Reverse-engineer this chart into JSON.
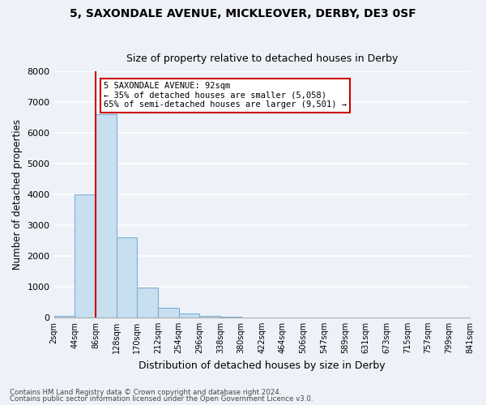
{
  "title1": "5, SAXONDALE AVENUE, MICKLEOVER, DERBY, DE3 0SF",
  "title2": "Size of property relative to detached houses in Derby",
  "xlabel": "Distribution of detached houses by size in Derby",
  "ylabel": "Number of detached properties",
  "bin_labels": [
    "2sqm",
    "44sqm",
    "86sqm",
    "128sqm",
    "170sqm",
    "212sqm",
    "254sqm",
    "296sqm",
    "338sqm",
    "380sqm",
    "422sqm",
    "464sqm",
    "506sqm",
    "547sqm",
    "589sqm",
    "631sqm",
    "673sqm",
    "715sqm",
    "757sqm",
    "799sqm",
    "841sqm"
  ],
  "bar_values": [
    50,
    4000,
    6600,
    2600,
    960,
    320,
    130,
    60,
    20,
    0,
    0,
    0,
    0,
    0,
    0,
    0,
    0,
    0,
    0,
    0
  ],
  "bar_color": "#c8dff0",
  "bar_edge_color": "#7dadd4",
  "red_line_bin_index": 2,
  "marker_line_color": "#cc0000",
  "ylim": [
    0,
    8000
  ],
  "yticks": [
    0,
    1000,
    2000,
    3000,
    4000,
    5000,
    6000,
    7000,
    8000
  ],
  "annotation_line1": "5 SAXONDALE AVENUE: 92sqm",
  "annotation_line2": "← 35% of detached houses are smaller (5,058)",
  "annotation_line3": "65% of semi-detached houses are larger (9,501) →",
  "annotation_box_color": "#ffffff",
  "annotation_box_edge_color": "#cc0000",
  "footer1": "Contains HM Land Registry data © Crown copyright and database right 2024.",
  "footer2": "Contains public sector information licensed under the Open Government Licence v3.0.",
  "background_color": "#eef2f8",
  "grid_color": "#ffffff",
  "spine_color": "#aaaaaa"
}
